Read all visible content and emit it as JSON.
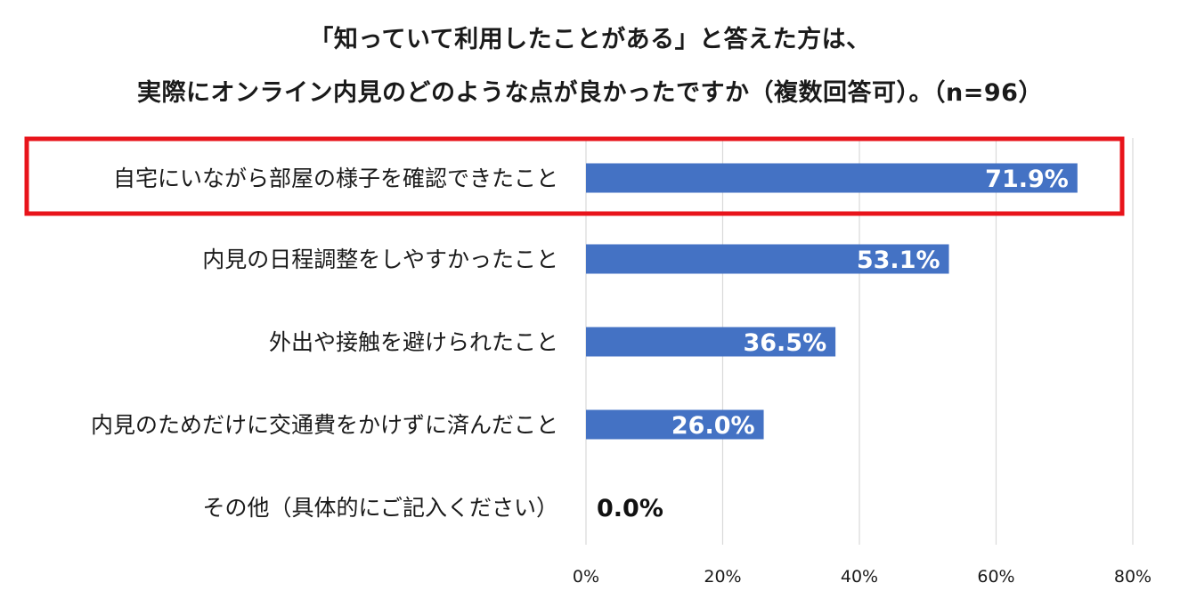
{
  "chart_data": {
    "type": "bar",
    "orientation": "horizontal",
    "title": "「知っていて利用したことがある」と答えた方は、",
    "subtitle": "実際にオンライン内見のどのような点が良かったですか（複数回答可）。（n=96）",
    "categories": [
      "自宅にいながら部屋の様子を確認できたこと",
      "内見の日程調整をしやすかったこと",
      "外出や接触を避けられたこと",
      "内見のためだけに交通費をかけずに済んだこと",
      "その他（具体的にご記入ください）"
    ],
    "values": [
      71.9,
      53.1,
      36.5,
      26.0,
      0.0
    ],
    "data_labels": [
      "71.9%",
      "53.1%",
      "36.5%",
      "26.0%",
      "0.0%"
    ],
    "xlim": [
      0,
      80
    ],
    "x_ticks": [
      "0%",
      "20%",
      "40%",
      "60%",
      "80%"
    ],
    "grid": "vertical",
    "bar_color": "#4472c4",
    "highlight_color": "#e8141b",
    "highlighted_category_index": 0
  }
}
